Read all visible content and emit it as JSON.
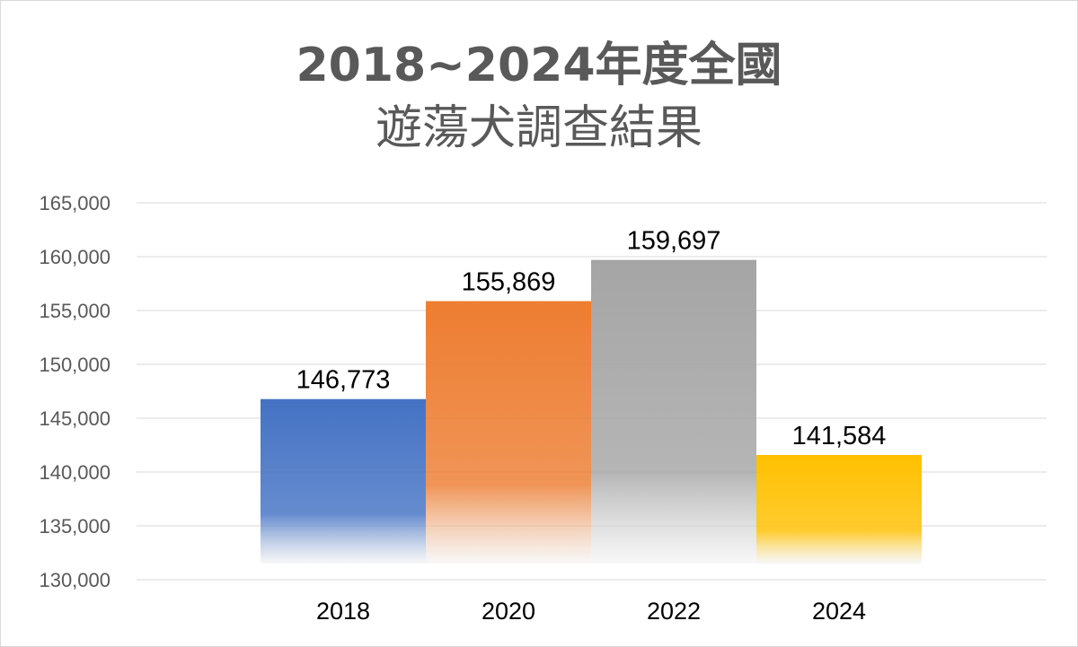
{
  "chart_data": {
    "type": "bar",
    "title_line1": "2018~2024年度全國",
    "title_line2": "遊蕩犬調查結果",
    "categories": [
      "2018",
      "2020",
      "2022",
      "2024"
    ],
    "values": [
      146773,
      155869,
      159697,
      141584
    ],
    "data_labels": [
      "146,773",
      "155,869",
      "159,697",
      "141,584"
    ],
    "y_ticks": [
      "130,000",
      "135,000",
      "140,000",
      "145,000",
      "150,000",
      "155,000",
      "160,000",
      "165,000"
    ],
    "ylim": [
      130000,
      165000
    ],
    "grid": true,
    "legend": "none",
    "colors": [
      "#4472c4",
      "#ed7d31",
      "#a5a5a5",
      "#ffc000"
    ]
  }
}
